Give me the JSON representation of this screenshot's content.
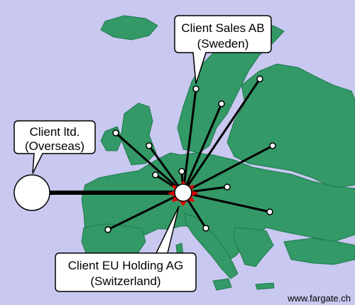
{
  "colors": {
    "background": "#c8c8f0",
    "land": "#339966",
    "land_edge": "#1f7a4d",
    "link": "#000000",
    "node_fill": "#ffffff",
    "hub_star": "#e60000",
    "callout_fill": "#ffffff"
  },
  "callouts": {
    "sweden": {
      "line1": "Client Sales AB",
      "line2": "(Sweden)"
    },
    "overseas": {
      "line1": "Client ltd.",
      "line2": "(Overseas)"
    },
    "switzerland": {
      "line1": "Client EU Holding AG",
      "line2": "(Switzerland)"
    }
  },
  "website": "www.fargate.ch"
}
